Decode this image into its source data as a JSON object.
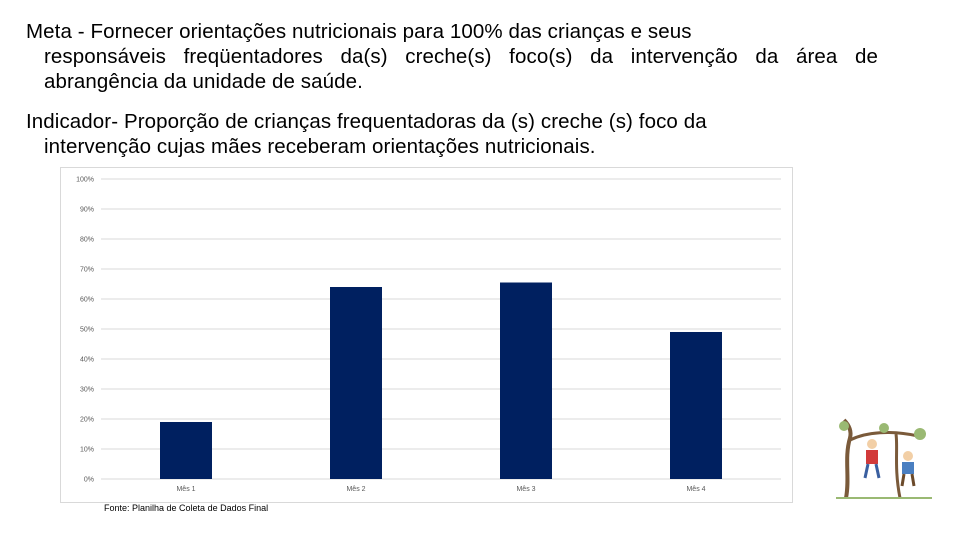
{
  "meta": {
    "line1": "Meta - Fornecer orientações nutricionais para 100%  das crianças e seus",
    "rest": "responsáveis freqüentadores da(s) creche(s) foco(s) da intervenção da área de abrangência da unidade de saúde."
  },
  "indicador": {
    "line1": "Indicador- Proporção de crianças frequentadoras da (s) creche (s) foco da",
    "rest": "intervenção cujas mães receberam orientações nutricionais."
  },
  "source": "Fonte: Planilha de Coleta de Dados Final",
  "colors": {
    "bar": "#002060",
    "grid": "#d9d9d9",
    "tick": "#595959"
  },
  "illustration_icon": "children-playing-on-tree-icon",
  "chart_data": {
    "type": "bar",
    "title": "",
    "xlabel": "",
    "ylabel": "",
    "categories": [
      "Mês 1",
      "Mês 2",
      "Mês 3",
      "Mês 4"
    ],
    "values": [
      19,
      64,
      65.5,
      49
    ],
    "ylim": [
      0,
      100
    ],
    "y_ticks": [
      "0%",
      "10%",
      "20%",
      "30%",
      "40%",
      "50%",
      "60%",
      "70%",
      "80%",
      "90%",
      "100%"
    ],
    "grid": true,
    "legend": "none"
  }
}
